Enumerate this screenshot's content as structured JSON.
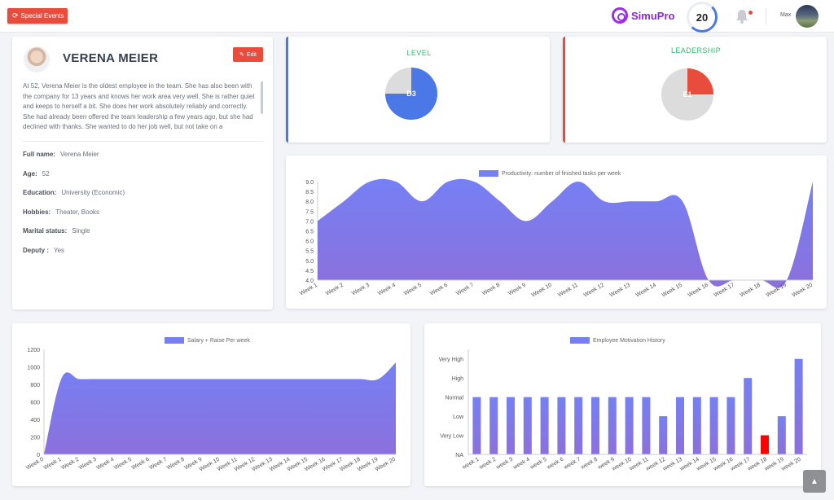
{
  "header": {
    "special_events_label": "Special Events",
    "logo_text": "SimuPro",
    "score": "20",
    "username": "Max",
    "accent": "#e74c3c",
    "brand": "#8a25e0"
  },
  "profile": {
    "name": "VERENA MEIER",
    "edit_label": "Edit",
    "bio": "At 52, Verena Meier is the oldest employee in the team. She has also been with the company for 13 years and knows her work area very well. She is rather quiet and keeps to herself a bit. She does her work absolutely reliably and correctly. She had already been offered the team leadership a few years ago, but she had declined with thanks. She wanted to do her job well, but not take on a",
    "fields": [
      {
        "label": "Full name:",
        "value": "Verena Meier"
      },
      {
        "label": "Age:",
        "value": "52"
      },
      {
        "label": "Education:",
        "value": "University (Economic)"
      },
      {
        "label": "Hobbies:",
        "value": "Theater, Books"
      },
      {
        "label": "Marital status:",
        "value": "Single"
      },
      {
        "label": "Deputy :",
        "value": "Yes"
      }
    ]
  },
  "gauges": {
    "level": {
      "title": "LEVEL",
      "label": "D3",
      "fraction": 0.75,
      "color": "#4a78e6"
    },
    "leadership": {
      "title": "LEADERSHIP",
      "label": "E1",
      "fraction": 0.25,
      "color": "#e74c3c"
    }
  },
  "chart_data": [
    {
      "type": "area",
      "legend": "Productivity: number of finished tasks per week",
      "categories": [
        "Week 1",
        "Week 2",
        "Week 3",
        "Week 4",
        "Week 5",
        "Week 6",
        "Week 7",
        "Week 8",
        "Week 9",
        "Week 10",
        "Week 11",
        "Week 12",
        "Week 13",
        "Week 14",
        "Week 15",
        "Week 16",
        "Week 17",
        "Week 18",
        "Week 19",
        "Week 20"
      ],
      "values": [
        7.0,
        8.0,
        9.0,
        9.0,
        8.0,
        9.0,
        9.0,
        8.0,
        7.0,
        8.0,
        9.0,
        8.0,
        8.0,
        8.0,
        8.0,
        4.0,
        4.0,
        4.0,
        4.0,
        9.0
      ],
      "ylim": [
        4.0,
        9.0
      ],
      "yticks": [
        "9.0",
        "8.5",
        "8.0",
        "7.5",
        "7.0",
        "6.5",
        "6.0",
        "5.5",
        "5.0",
        "4.5",
        "4.0"
      ],
      "color": "#7680f0"
    },
    {
      "type": "area",
      "legend": "Salary + Raise Per week",
      "categories": [
        "Week 0",
        "Week 1",
        "Week 2",
        "Week 3",
        "Week 4",
        "Week 5",
        "Week 6",
        "Week 7",
        "Week 8",
        "Week 9",
        "Week 10",
        "Week 11",
        "Week 12",
        "Week 13",
        "Week 14",
        "Week 15",
        "Week 16",
        "Week 17",
        "Week 18",
        "Week 19",
        "Week 20"
      ],
      "values": [
        0,
        870,
        860,
        860,
        860,
        860,
        860,
        860,
        860,
        860,
        860,
        860,
        860,
        860,
        860,
        860,
        860,
        860,
        860,
        860,
        1050
      ],
      "ylim": [
        0,
        1200
      ],
      "yticks": [
        "1200",
        "1000",
        "800",
        "600",
        "400",
        "200",
        "0"
      ],
      "color": "#7680f0"
    },
    {
      "type": "bar",
      "legend": "Employee Motivation History",
      "categories": [
        "week 1",
        "week 2",
        "week 3",
        "week 4",
        "week 5",
        "week 6",
        "week 7",
        "week 8",
        "week 9",
        "week 10",
        "week 11",
        "week 12",
        "week 13",
        "week 14",
        "week 15",
        "week 16",
        "week 17",
        "week 18",
        "week 19",
        "week 20"
      ],
      "values": [
        3,
        3,
        3,
        3,
        3,
        3,
        3,
        3,
        3,
        3,
        3,
        2,
        3,
        3,
        3,
        3,
        4,
        1,
        2,
        5
      ],
      "ylim": [
        0,
        5.5
      ],
      "ylevels": [
        "NA",
        "Very Low",
        "Low",
        "Normal",
        "High",
        "Very High"
      ],
      "color": "#7680f0",
      "highlight_index": 17,
      "highlight_color": "#ff0000"
    }
  ]
}
